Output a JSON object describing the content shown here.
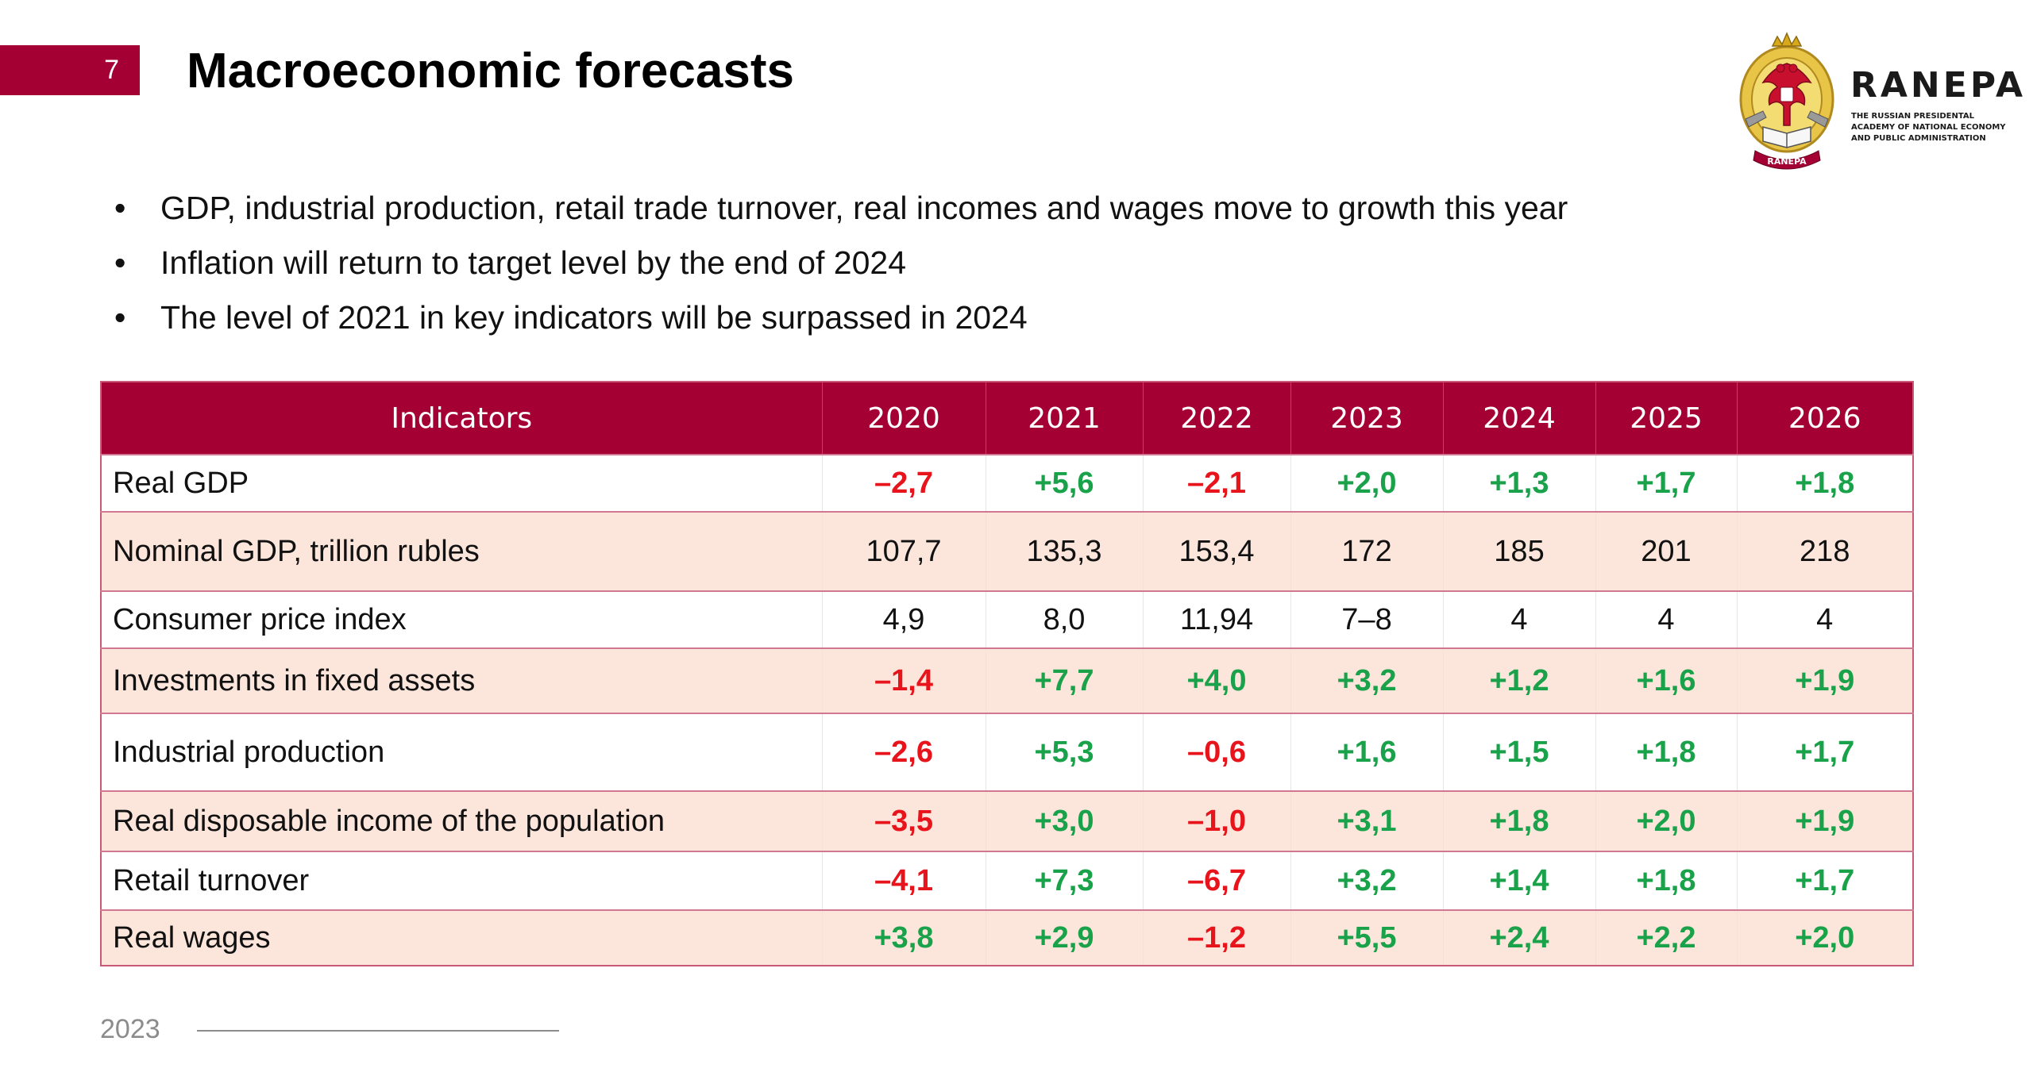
{
  "slide": {
    "number": "7",
    "title": "Macroeconomic forecasts",
    "brand_color": "#a50034"
  },
  "logo": {
    "word": "RANEPA",
    "subtitle": "THE RUSSIAN PRESIDENTAL\nACADEMY OF NATIONAL ECONOMY\nAND PUBLIC ADMINISTRATION",
    "ribbon_text": "RANEPA",
    "icon": "double-headed-eagle-emblem-icon"
  },
  "bullets": [
    "GDP, industrial production, retail trade turnover, real incomes and wages move to growth this year",
    "Inflation will return to target level by the end of 2024",
    "The level of 2021 in key indicators will be surpassed in 2024"
  ],
  "bullet_glyph": "•",
  "table": {
    "header": [
      "Indicators",
      "2020",
      "2021",
      "2022",
      "2023",
      "2024",
      "2025",
      "2026"
    ],
    "rows": [
      {
        "label": "Real GDP",
        "values": [
          "–2,7",
          "+5,6",
          "–2,1",
          "+2,0",
          "+1,3",
          "+1,7",
          "+1,8"
        ]
      },
      {
        "label": "Nominal GDP, trillion rubles",
        "values": [
          "107,7",
          "135,3",
          "153,4",
          "172",
          "185",
          "201",
          "218"
        ]
      },
      {
        "label": "Consumer price index",
        "values": [
          "4,9",
          "8,0",
          "11,94",
          "7–8",
          "4",
          "4",
          "4"
        ]
      },
      {
        "label": "Investments in fixed assets",
        "values": [
          "–1,4",
          "+7,7",
          "+4,0",
          "+3,2",
          "+1,2",
          "+1,6",
          "+1,9"
        ]
      },
      {
        "label": "Industrial production",
        "values": [
          "–2,6",
          "+5,3",
          "–0,6",
          "+1,6",
          "+1,5",
          "+1,8",
          "+1,7"
        ]
      },
      {
        "label": "Real disposable income of the population",
        "values": [
          "–3,5",
          "+3,0",
          "–1,0",
          "+3,1",
          "+1,8",
          "+2,0",
          "+1,9"
        ]
      },
      {
        "label": "Retail turnover",
        "values": [
          "–4,1",
          "+7,3",
          "–6,7",
          "+3,2",
          "+1,4",
          "+1,8",
          "+1,7"
        ]
      },
      {
        "label": "Real wages",
        "values": [
          "+3,8",
          "+2,9",
          "–1,2",
          "+5,5",
          "+2,4",
          "+2,2",
          "+2,0"
        ]
      }
    ],
    "colors": {
      "header_bg": "#a50034",
      "negative": "#e8141c",
      "positive": "#1aa24a",
      "stripe": "#fce6dc"
    }
  },
  "footer": {
    "year": "2023"
  }
}
